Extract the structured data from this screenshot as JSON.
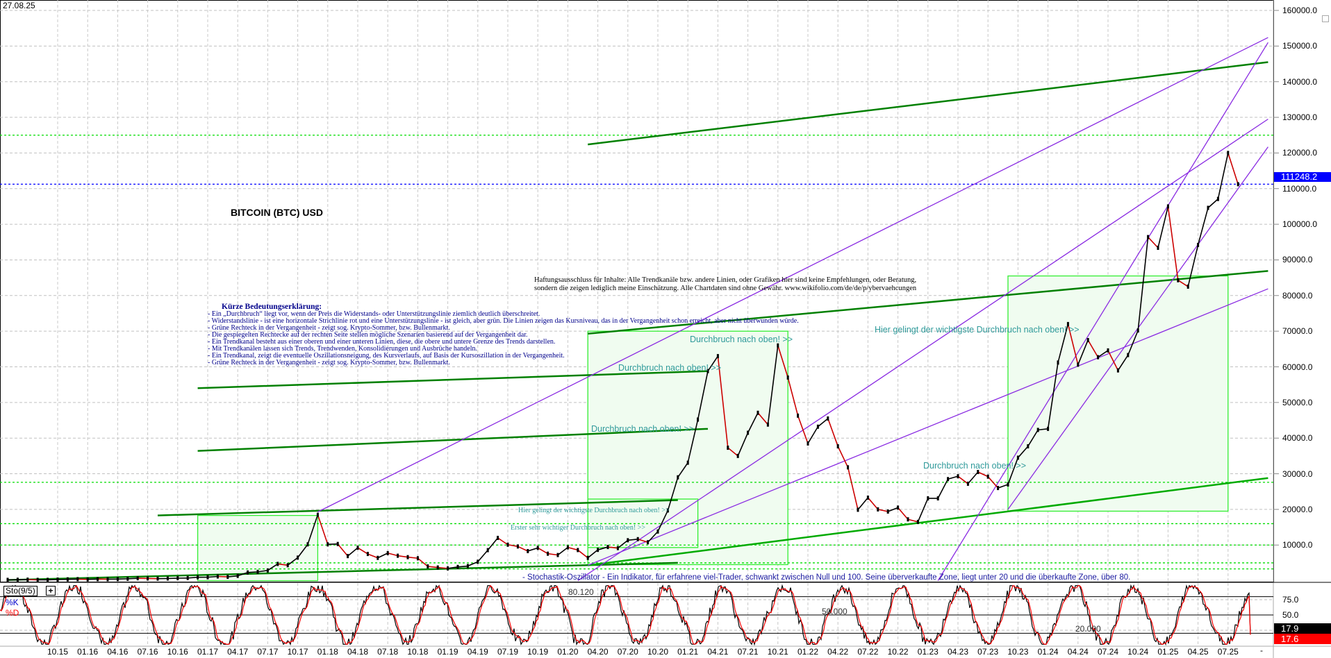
{
  "date_label": "27.08.25",
  "title": "BITCOIN (BTC) USD",
  "legend": {
    "title": "Kürze Bedeutungserklärung:",
    "lines": [
      "- Ein „Durchbruch“ liegt vor, wenn der Preis die Widerstands- oder Unterstützungslinie ziemlich deutlich überschreitet.",
      "- Widerstandslinie - ist eine horizontale Strichlinie rot und eine Unterstützungslinie - ist gleich, aber grün. Die Linien zeigen das Kursniveau, das in der Vergangenheit schon erreicht, aber nicht überwunden würde.",
      "- Grüne Rechteck in der Vergangenheit - zeigt sog. Krypto-Sommer, bzw. Bullenmarkt.",
      "- Die gespiegelten Rechtecke auf der rechten Seite stellen mögliche Szenarien basierend auf der Vergangenheit dar.",
      "- Ein Trendkanal besteht aus einer oberen und einer unteren Linien, diese, die obere und untere Grenze des Trends darstellen.",
      "- Mit Trendkanälen lassen sich Trends, Trendwenden, Konsolidierungen und Ausbrüche handeln.",
      " - Ein Trendkanal, zeigt die eventuelle Oszillationsneigung, des Kursverlaufs, auf Basis der Kursoszillation in der Vergangenheit.",
      " - Grüne Rechteck in der Vergangenheit - zeigt sog. Krypto-Sommer, bzw. Bullenmarkt."
    ]
  },
  "disclaimer": [
    "Haftungsausschluss für Inhalte: Alle Trendkanäle bzw. andere Linien, oder Grafiken hier sind keine Empfehlungen, oder Beratung,",
    "sondern die zeigen lediglich meine  Einschätzung. Alle Chartdaten sind ohne Gewähr.  www.wikifolio.com/de/de/p/ybervaehcungen"
  ],
  "annotations": {
    "breakout_1": "Durchbruch nach oben! >>",
    "breakout_2": "Durchbruch nach oben! >>",
    "breakout_3": "Durchbruch nach oben! >>",
    "breakout_4": "Durchbruch nach oben! >>",
    "most_important_big": "Hier gelingt der wichtigste Durchbruch nach oben! >>",
    "most_important_small": "Hier gelingt der wichtigste Durchbruch nach oben! >>",
    "first_important": "Erster sehr wichtiger Durchbruch nach oben! >>",
    "stochastic_note": "- Stochastik-Oszillator - Ein Indikator, für erfahrene viel-Trader, schwankt zwischen Null und 100. Seine überverkaufte Zone, liegt unter 20 und die überkaufte Zone, über 80."
  },
  "current_price_label": "111248.2",
  "colors": {
    "price": "#000000",
    "trend_green": "#008000",
    "zone_green": "#00dd00",
    "channel_purple": "#8a2be2",
    "current_price": "#0000ff",
    "stoch_k": "#000000",
    "stoch_d": "#ff0000",
    "note_teal": "#2f9a9a"
  },
  "oscillator": {
    "name": "Sto(9/5)",
    "plus_label": "+",
    "k_label": "%K",
    "d_label": "%D",
    "k_value": "17.9",
    "d_value": "17.6",
    "level_labels": [
      "75.0",
      "50.0"
    ],
    "inner_labels": [
      "80.120",
      "50.000",
      "20.000"
    ],
    "levels": [
      80,
      50,
      20
    ],
    "range": [
      0,
      100
    ]
  },
  "axis_corner": "-",
  "chart_data": {
    "type": "line",
    "title": "BITCOIN (BTC) USD",
    "x_tick_labels": [
      "10.15",
      "01.16",
      "04.16",
      "07.16",
      "10.16",
      "01.17",
      "04.17",
      "07.17",
      "10.17",
      "01.18",
      "04.18",
      "07.18",
      "10.18",
      "01.19",
      "04.19",
      "07.19",
      "10.19",
      "01.20",
      "04.20",
      "07.20",
      "10.20",
      "01.21",
      "04.21",
      "07.21",
      "10.21",
      "01.22",
      "04.22",
      "07.22",
      "10.22",
      "01.23",
      "04.23",
      "07.23",
      "10.23",
      "01.24",
      "04.24",
      "07.24",
      "10.24",
      "01.25",
      "04.25",
      "07.25"
    ],
    "y_ticks": [
      160000,
      150000,
      140000,
      130000,
      120000,
      110000,
      100000,
      90000,
      80000,
      70000,
      60000,
      50000,
      40000,
      30000,
      20000,
      10000
    ],
    "y_tick_labels": [
      "160000.0",
      "150000.0",
      "140000.0",
      "130000.0",
      "120000.0",
      "110000.0",
      "100000.0",
      "90000.0",
      "80000.0",
      "70000.0",
      "60000.0",
      "50000.0",
      "40000.0",
      "30000.0",
      "20000.0",
      "10000.0"
    ],
    "ylim": [
      0,
      160000
    ],
    "y_scale": "linear",
    "grid": true,
    "series": [
      {
        "x": [
          "2015-05",
          "2015-06",
          "2015-07",
          "2015-08",
          "2015-09",
          "2015-10",
          "2015-11",
          "2015-12",
          "2016-01",
          "2016-02",
          "2016-03",
          "2016-04",
          "2016-05",
          "2016-06",
          "2016-07",
          "2016-08",
          "2016-09",
          "2016-10",
          "2016-11",
          "2016-12",
          "2017-01",
          "2017-02",
          "2017-03",
          "2017-04",
          "2017-05",
          "2017-06",
          "2017-07",
          "2017-08",
          "2017-09",
          "2017-10",
          "2017-11",
          "2017-12",
          "2018-01",
          "2018-02",
          "2018-03",
          "2018-04",
          "2018-05",
          "2018-06",
          "2018-07",
          "2018-08",
          "2018-09",
          "2018-10",
          "2018-11",
          "2018-12",
          "2019-01",
          "2019-02",
          "2019-03",
          "2019-04",
          "2019-05",
          "2019-06",
          "2019-07",
          "2019-08",
          "2019-09",
          "2019-10",
          "2019-11",
          "2019-12",
          "2020-01",
          "2020-02",
          "2020-03",
          "2020-04",
          "2020-05",
          "2020-06",
          "2020-07",
          "2020-08",
          "2020-09",
          "2020-10",
          "2020-11",
          "2020-12",
          "2021-01",
          "2021-02",
          "2021-03",
          "2021-04",
          "2021-05",
          "2021-06",
          "2021-07",
          "2021-08",
          "2021-09",
          "2021-10",
          "2021-11",
          "2021-12",
          "2022-01",
          "2022-02",
          "2022-03",
          "2022-04",
          "2022-05",
          "2022-06",
          "2022-07",
          "2022-08",
          "2022-09",
          "2022-10",
          "2022-11",
          "2022-12",
          "2023-01",
          "2023-02",
          "2023-03",
          "2023-04",
          "2023-05",
          "2023-06",
          "2023-07",
          "2023-08",
          "2023-09",
          "2023-10",
          "2023-11",
          "2023-12",
          "2024-01",
          "2024-02",
          "2024-03",
          "2024-04",
          "2024-05",
          "2024-06",
          "2024-07",
          "2024-08",
          "2024-09",
          "2024-10",
          "2024-11",
          "2024-12",
          "2025-01",
          "2025-02",
          "2025-03",
          "2025-04",
          "2025-05",
          "2025-06",
          "2025-07",
          "2025-08"
        ],
        "values": [
          230,
          260,
          285,
          230,
          236,
          314,
          377,
          430,
          370,
          437,
          416,
          448,
          531,
          673,
          624,
          575,
          609,
          700,
          742,
          963,
          970,
          1190,
          1080,
          1350,
          2300,
          2480,
          2875,
          4700,
          4340,
          6470,
          10200,
          18500,
          10200,
          10300,
          6900,
          9240,
          7500,
          6400,
          7730,
          7000,
          6600,
          6300,
          4000,
          3700,
          3450,
          3850,
          4100,
          5300,
          8570,
          12000,
          10100,
          9600,
          8300,
          9200,
          7570,
          7200,
          9350,
          8600,
          6400,
          8650,
          9450,
          9140,
          11350,
          11650,
          10780,
          13800,
          19700,
          29000,
          33100,
          45200,
          58800,
          63000,
          37300,
          35000,
          41500,
          47100,
          43800,
          66000,
          57000,
          46300,
          38500,
          43200,
          45500,
          37700,
          31800,
          19900,
          23300,
          20000,
          19400,
          20500,
          17200,
          16500,
          23100,
          23100,
          28500,
          29300,
          27200,
          30500,
          29200,
          26000,
          27000,
          34500,
          37700,
          42300,
          42600,
          61200,
          72000,
          60600,
          67500,
          62700,
          64600,
          59000,
          63300,
          70200,
          96400,
          93400,
          105000,
          84300,
          82500,
          94200,
          104600,
          107100,
          120000,
          111248
        ]
      }
    ],
    "current_price": 111248.2,
    "horizontal_levels": [
      125000,
      111248.2,
      27600,
      16000,
      10000,
      5000,
      3300
    ],
    "trend_lines": [
      {
        "from": [
          "2020-03",
          122400
        ],
        "to": [
          "2025-11",
          145500
        ],
        "color": "#008000"
      },
      {
        "from": [
          "2020-03",
          69300
        ],
        "to": [
          "2025-11",
          86900
        ],
        "color": "#008000"
      },
      {
        "from": [
          "2016-12",
          54000
        ],
        "to": [
          "2021-03",
          58800
        ],
        "color": "#008000"
      },
      {
        "from": [
          "2016-12",
          36400
        ],
        "to": [
          "2021-03",
          42600
        ],
        "color": "#008000"
      },
      {
        "from": [
          "2016-08",
          18300
        ],
        "to": [
          "2020-12",
          22600
        ],
        "color": "#008000"
      },
      {
        "from": [
          "2015-05",
          200
        ],
        "to": [
          "2020-12",
          5000
        ],
        "color": "#008000"
      },
      {
        "from": [
          "2020-03",
          4300
        ],
        "to": [
          "2025-11",
          28800
        ],
        "color": "#00aa00"
      },
      {
        "from": [
          "2017-12",
          19300
        ],
        "to": [
          "2025-11",
          152400
        ],
        "color": "#8a2be2"
      },
      {
        "from": [
          "2020-02",
          0
        ],
        "to": [
          "2025-11",
          129500
        ],
        "color": "#8a2be2"
      },
      {
        "from": [
          "2020-03",
          4300
        ],
        "to": [
          "2025-11",
          81900
        ],
        "color": "#8a2be2"
      },
      {
        "from": [
          "2023-02",
          0
        ],
        "to": [
          "2025-11",
          151000
        ],
        "color": "#8a2be2"
      },
      {
        "from": [
          "2023-09",
          20000
        ],
        "to": [
          "2025-11",
          121700
        ],
        "color": "#8a2be2"
      }
    ],
    "zones": [
      {
        "from": [
          "2016-12",
          18300
        ],
        "to": [
          "2017-12",
          0
        ]
      },
      {
        "from": [
          "2020-03",
          70000
        ],
        "to": [
          "2021-11",
          4500
        ]
      },
      {
        "from": [
          "2020-03",
          22900
        ],
        "to": [
          "2021-02",
          9300
        ]
      },
      {
        "from": [
          "2023-09",
          85500
        ],
        "to": [
          "2025-07",
          19500
        ]
      }
    ]
  }
}
